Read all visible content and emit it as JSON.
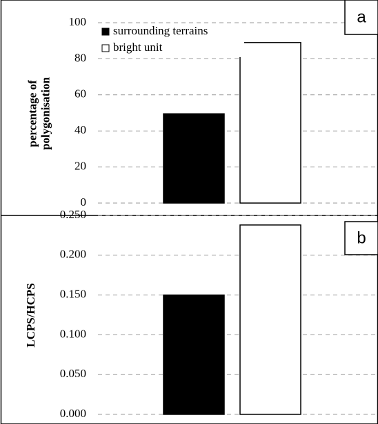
{
  "chart_data": [
    {
      "type": "bar",
      "panel_label": "a",
      "ylabel": [
        "percentage of",
        "polygonisation"
      ],
      "series": [
        {
          "name": "surrounding terrains",
          "color": "#000000",
          "values": [
            49.5
          ]
        },
        {
          "name": "bright unit",
          "color": "#ffffff",
          "values": [
            89
          ]
        }
      ],
      "ylim": [
        0,
        100
      ],
      "yticks": [
        0,
        20,
        40,
        60,
        80,
        100
      ],
      "grid": true,
      "legend": "upper left"
    },
    {
      "type": "bar",
      "panel_label": "b",
      "ylabel": "LCPS/HCPS",
      "series": [
        {
          "color": "#000000",
          "values": [
            0.15
          ]
        },
        {
          "color": "#ffffff",
          "values": [
            0.238
          ]
        }
      ],
      "ylim": [
        0,
        0.25
      ],
      "yticks": [
        {
          "value": 0,
          "label": "0.000"
        },
        {
          "value": 0.05,
          "label": "0.050"
        },
        {
          "value": 0.1,
          "label": "0.100"
        },
        {
          "value": 0.15,
          "label": "0.150"
        },
        {
          "value": 0.2,
          "label": "0.200"
        },
        {
          "value": 0.25,
          "label": "0.250"
        }
      ],
      "grid": true
    }
  ]
}
